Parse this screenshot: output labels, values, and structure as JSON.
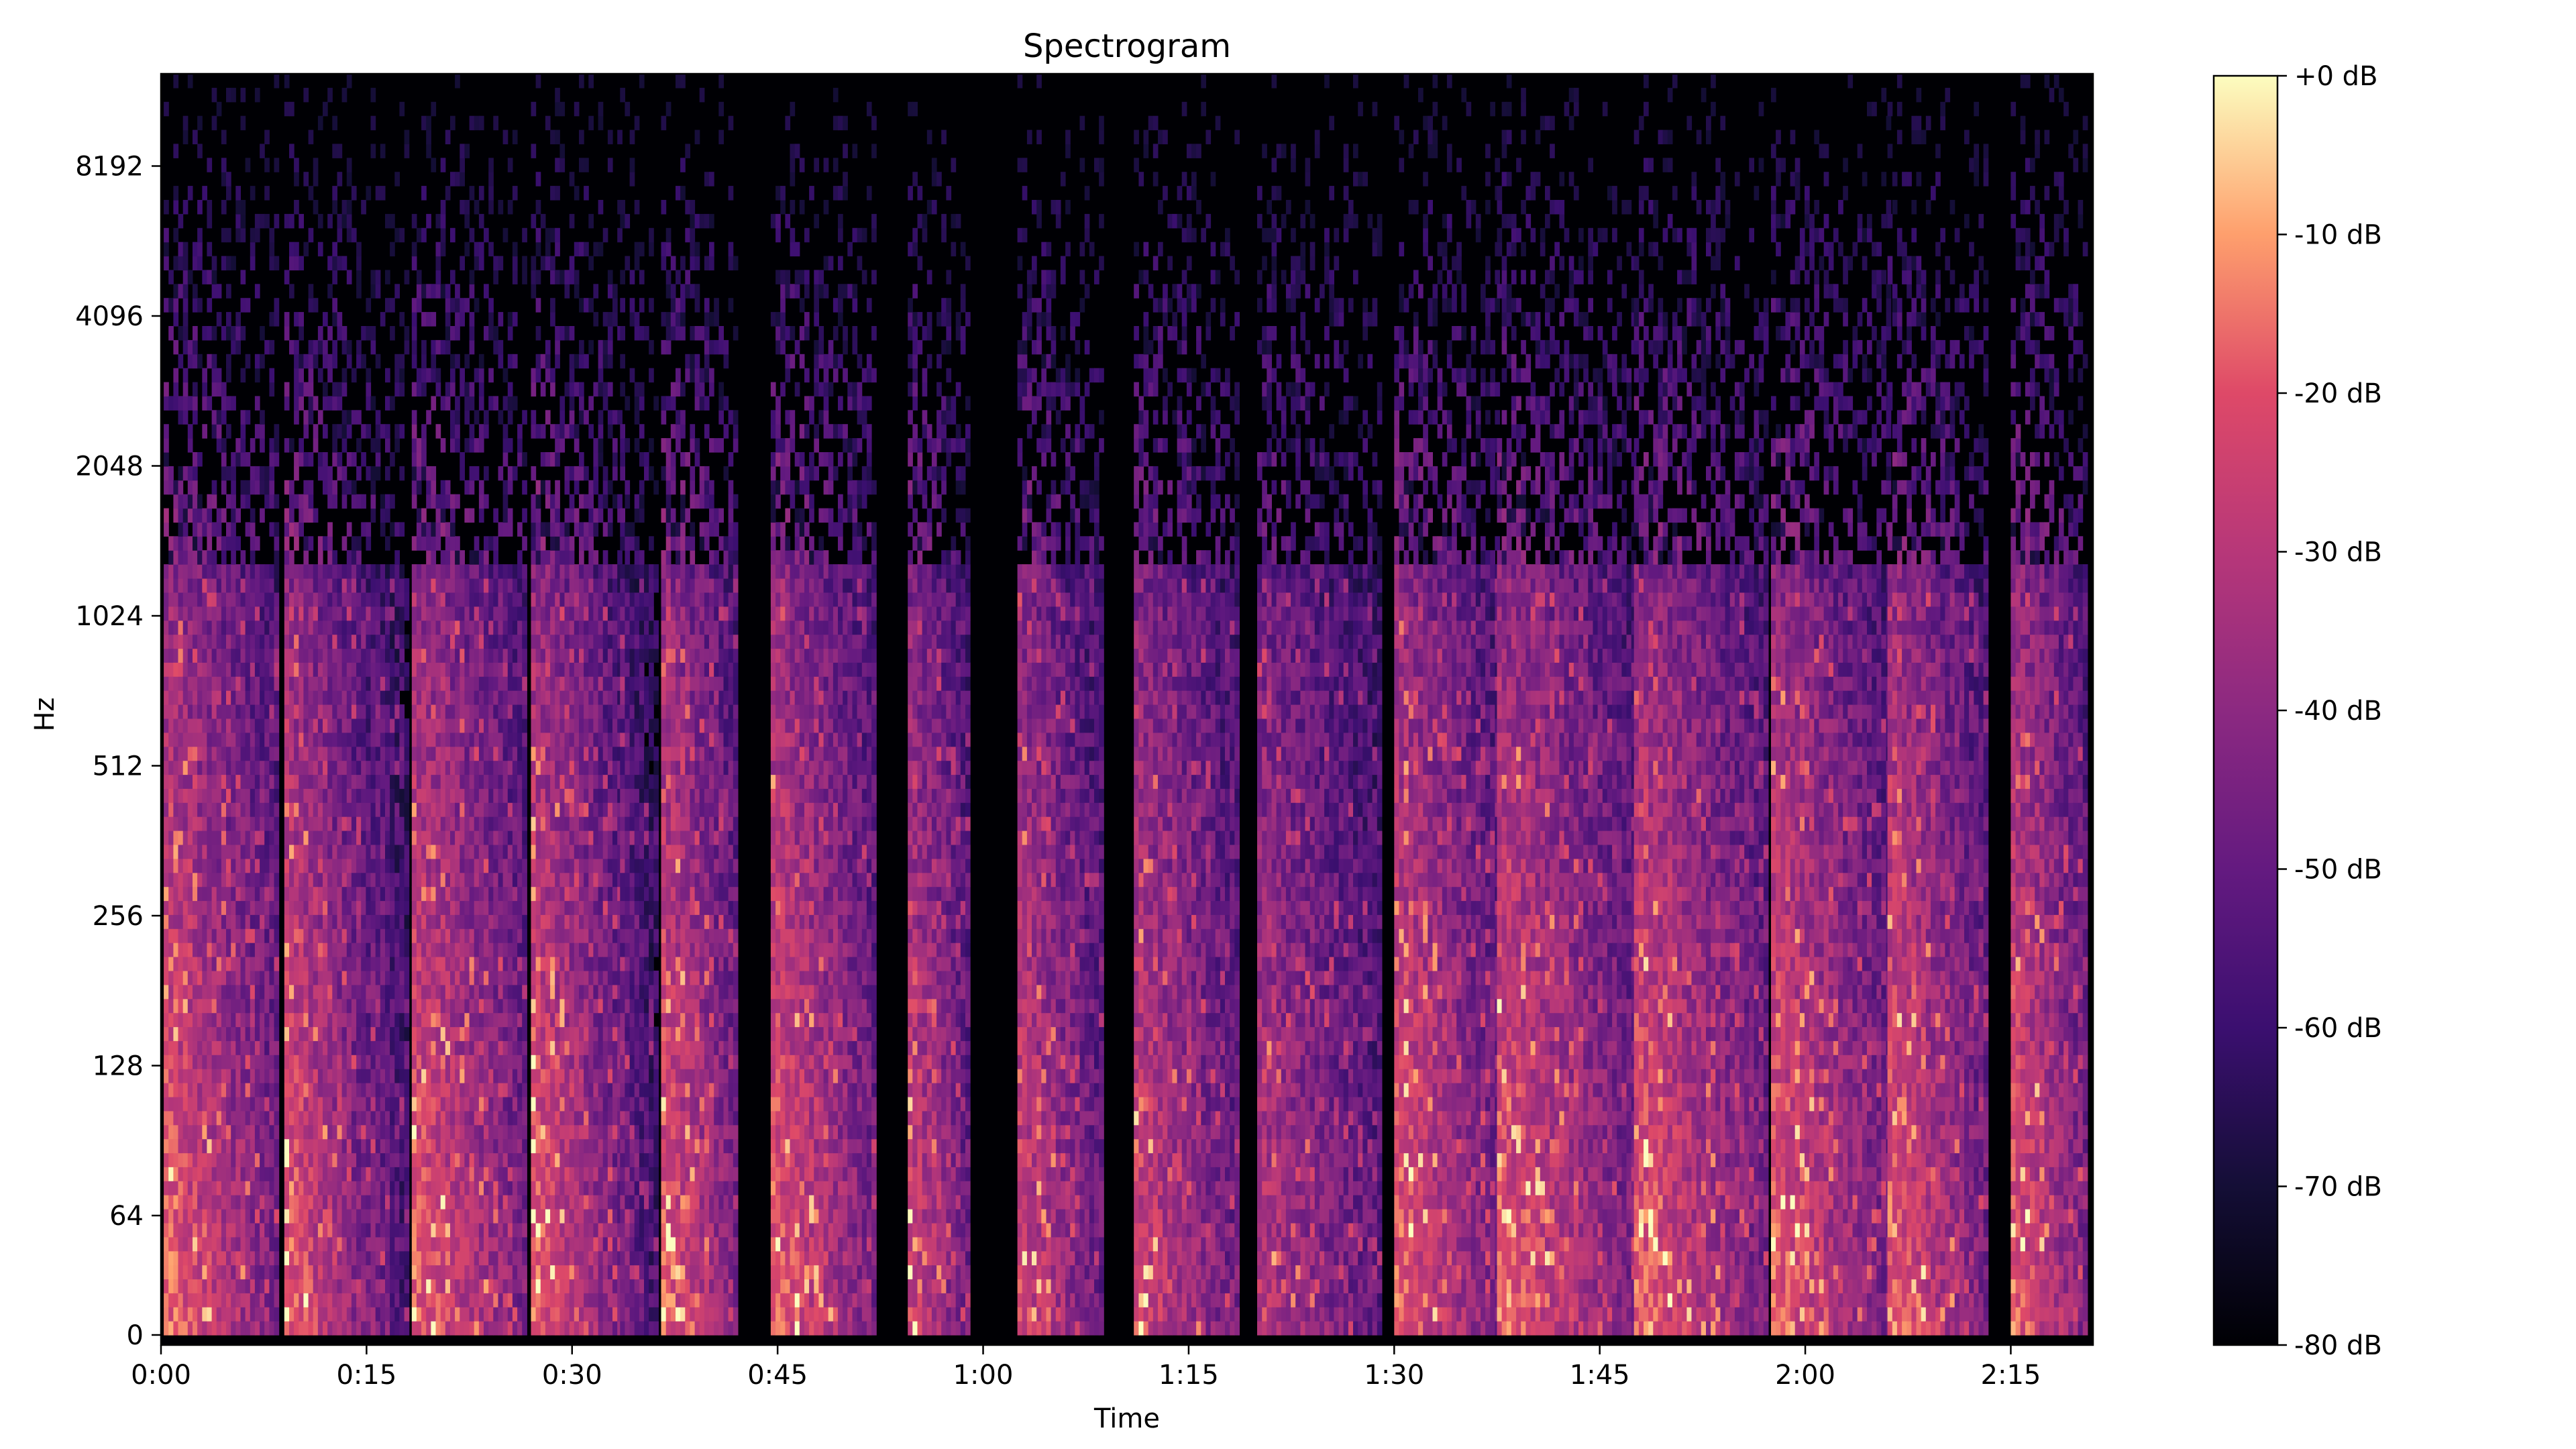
{
  "chart_data": {
    "type": "heatmap",
    "title": "Spectrogram",
    "xlabel": "Time",
    "ylabel": "Hz",
    "xlim_seconds": [
      0,
      141
    ],
    "x_ticks": [
      {
        "label": "0:00",
        "value": 0
      },
      {
        "label": "0:15",
        "value": 15
      },
      {
        "label": "0:30",
        "value": 30
      },
      {
        "label": "0:45",
        "value": 45
      },
      {
        "label": "1:00",
        "value": 60
      },
      {
        "label": "1:15",
        "value": 75
      },
      {
        "label": "1:30",
        "value": 90
      },
      {
        "label": "1:45",
        "value": 105
      },
      {
        "label": "2:00",
        "value": 120
      },
      {
        "label": "2:15",
        "value": 135
      }
    ],
    "y_scale": "log2",
    "y_ticks": [
      {
        "label": "0",
        "value": 0
      },
      {
        "label": "64",
        "value": 64
      },
      {
        "label": "128",
        "value": 128
      },
      {
        "label": "256",
        "value": 256
      },
      {
        "label": "512",
        "value": 512
      },
      {
        "label": "1024",
        "value": 1024
      },
      {
        "label": "2048",
        "value": 2048
      },
      {
        "label": "4096",
        "value": 4096
      },
      {
        "label": "8192",
        "value": 8192
      }
    ],
    "colormap": "magma",
    "colorbar": {
      "range_db": [
        -80,
        0
      ],
      "ticks": [
        {
          "label": "+0 dB",
          "value": 0
        },
        {
          "label": "-10 dB",
          "value": -10
        },
        {
          "label": "-20 dB",
          "value": -20
        },
        {
          "label": "-30 dB",
          "value": -30
        },
        {
          "label": "-40 dB",
          "value": -40
        },
        {
          "label": "-50 dB",
          "value": -50
        },
        {
          "label": "-60 dB",
          "value": -60
        },
        {
          "label": "-70 dB",
          "value": -70
        },
        {
          "label": "-80 dB",
          "value": -80
        }
      ]
    },
    "note_events": [
      {
        "start": 0.2,
        "end": 8.5,
        "strength": 1.0
      },
      {
        "start": 9.0,
        "end": 15.0,
        "strength": 1.0
      },
      {
        "start": 15.3,
        "end": 18.0,
        "strength": 0.6
      },
      {
        "start": 18.3,
        "end": 26.5,
        "strength": 1.0
      },
      {
        "start": 27.0,
        "end": 33.5,
        "strength": 1.0
      },
      {
        "start": 33.5,
        "end": 36.0,
        "strength": 0.6
      },
      {
        "start": 36.5,
        "end": 42.0,
        "strength": 1.0
      },
      {
        "start": 44.5,
        "end": 52.0,
        "strength": 1.0
      },
      {
        "start": 54.5,
        "end": 59.0,
        "strength": 0.9
      },
      {
        "start": 62.5,
        "end": 68.5,
        "strength": 0.9
      },
      {
        "start": 71.0,
        "end": 78.5,
        "strength": 0.9
      },
      {
        "start": 80.0,
        "end": 89.0,
        "strength": 0.8
      },
      {
        "start": 90.0,
        "end": 97.5,
        "strength": 1.0
      },
      {
        "start": 97.5,
        "end": 107.5,
        "strength": 1.0
      },
      {
        "start": 107.5,
        "end": 117.0,
        "strength": 1.0
      },
      {
        "start": 117.5,
        "end": 126.0,
        "strength": 1.0
      },
      {
        "start": 126.0,
        "end": 133.0,
        "strength": 1.0
      },
      {
        "start": 135.0,
        "end": 140.5,
        "strength": 1.0
      }
    ]
  }
}
